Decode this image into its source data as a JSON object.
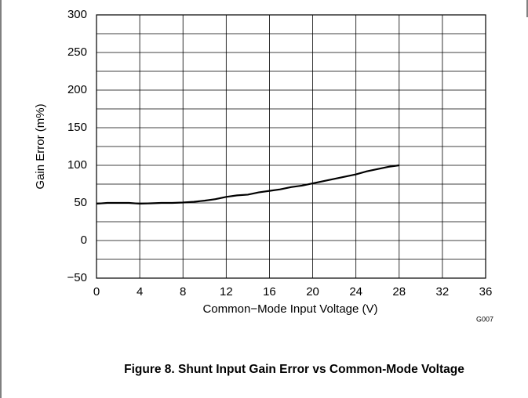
{
  "chart_data": {
    "type": "line",
    "title": "Figure 8. Shunt Input Gain Error vs Common-Mode Voltage",
    "x_label": "Common−Mode Input Voltage (V)",
    "y_label": "Gain Error (m%)",
    "annotation": "G007",
    "x": [
      0,
      1,
      2,
      3,
      4,
      5,
      6,
      7,
      8,
      9,
      10,
      11,
      12,
      13,
      14,
      15,
      16,
      17,
      18,
      19,
      20,
      21,
      22,
      23,
      24,
      25,
      26,
      27,
      28
    ],
    "series": [
      {
        "name": "Gain Error",
        "color": "#000000",
        "values": [
          49,
          50,
          50,
          50,
          49,
          49.5,
          50,
          50,
          50.5,
          51.5,
          53,
          55,
          58,
          60,
          61,
          64,
          66,
          68,
          71,
          73,
          76,
          79,
          82,
          85,
          88,
          92,
          95,
          98,
          100
        ]
      }
    ],
    "xlim": [
      0,
      36
    ],
    "xticks": [
      0,
      4,
      8,
      12,
      16,
      20,
      24,
      28,
      32,
      36
    ],
    "ylim": [
      -50,
      300
    ],
    "yticks": [
      {
        "value": -50,
        "label": "−50"
      },
      0,
      50,
      100,
      150,
      200,
      250,
      300
    ],
    "grid": true
  }
}
